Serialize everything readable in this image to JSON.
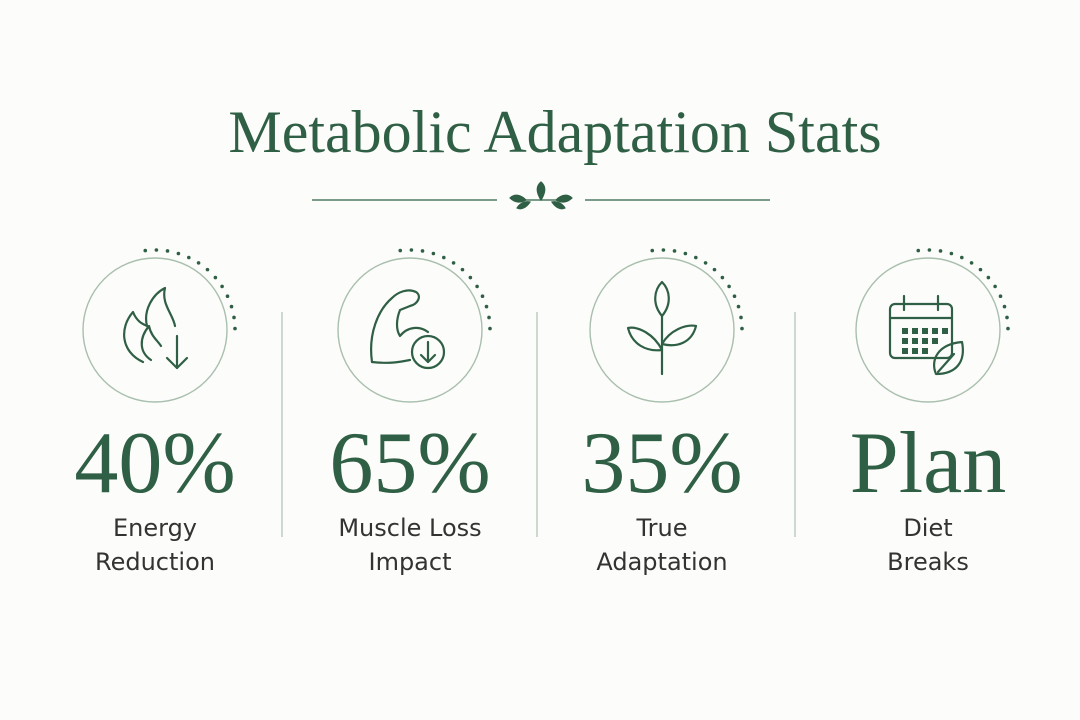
{
  "header": {
    "title": "Metabolic Adaptation Stats"
  },
  "stats": [
    {
      "value": "40%",
      "label": [
        "Energy",
        "Reduction"
      ]
    },
    {
      "value": "65%",
      "label": [
        "Muscle Loss",
        "Impact"
      ]
    },
    {
      "value": "35%",
      "label": [
        "True",
        "Adaptation"
      ]
    },
    {
      "value": "Plan",
      "label": [
        "Diet",
        "Breaks"
      ]
    }
  ]
}
